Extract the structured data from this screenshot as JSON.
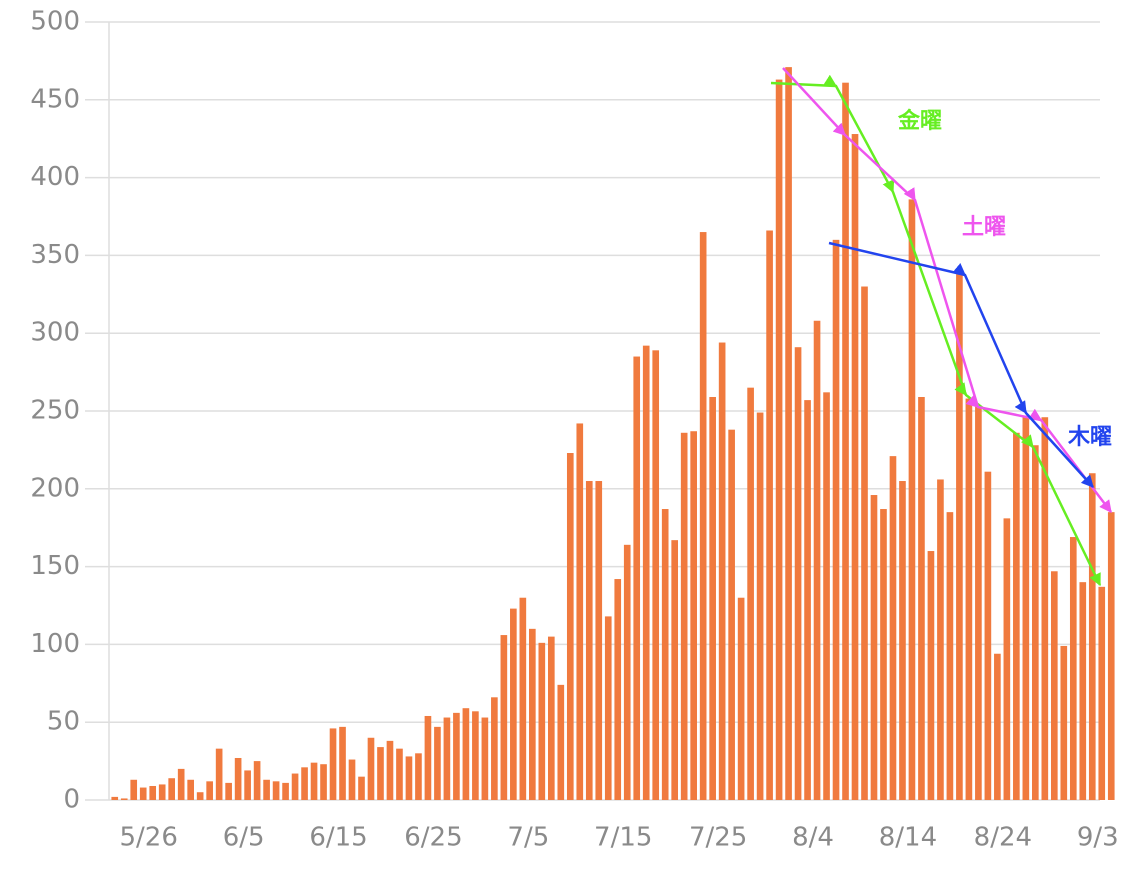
{
  "chart_data": {
    "type": "bar",
    "categories": [
      null,
      null,
      null,
      null,
      "5/26",
      null,
      null,
      null,
      null,
      null,
      null,
      null,
      null,
      null,
      "6/5",
      null,
      null,
      null,
      null,
      null,
      null,
      null,
      null,
      null,
      "6/15",
      null,
      null,
      null,
      null,
      null,
      null,
      null,
      null,
      null,
      "6/25",
      null,
      null,
      null,
      null,
      null,
      null,
      null,
      null,
      null,
      "7/5",
      null,
      null,
      null,
      null,
      null,
      null,
      null,
      null,
      null,
      "7/15",
      null,
      null,
      null,
      null,
      null,
      null,
      null,
      null,
      null,
      "7/25",
      null,
      null,
      null,
      null,
      null,
      null,
      null,
      null,
      null,
      "8/4",
      null,
      null,
      null,
      null,
      null,
      null,
      null,
      null,
      null,
      "8/14",
      null,
      null,
      null,
      null,
      null,
      null,
      null,
      null,
      null,
      "8/24",
      null,
      null,
      null,
      null,
      null,
      null,
      null,
      null,
      null,
      "9/3",
      null
    ],
    "values": [
      2,
      1,
      13,
      8,
      9,
      10,
      14,
      20,
      13,
      5,
      12,
      33,
      11,
      27,
      19,
      25,
      13,
      12,
      11,
      17,
      21,
      24,
      23,
      46,
      47,
      26,
      15,
      40,
      34,
      38,
      33,
      28,
      30,
      54,
      47,
      53,
      56,
      59,
      57,
      53,
      66,
      106,
      123,
      130,
      110,
      101,
      105,
      74,
      223,
      242,
      205,
      205,
      118,
      142,
      164,
      285,
      292,
      289,
      187,
      167,
      236,
      237,
      365,
      259,
      294,
      238,
      130,
      265,
      249,
      366,
      463,
      471,
      291,
      257,
      308,
      262,
      360,
      461,
      428,
      330,
      196,
      187,
      221,
      205,
      386,
      259,
      160,
      206,
      185,
      338,
      258,
      253,
      211,
      94,
      181,
      236,
      247,
      228,
      246,
      147,
      99,
      169,
      140,
      210,
      137,
      185
    ],
    "color": "#f07a3e",
    "ylim": [
      0,
      500
    ],
    "yticks": [
      0,
      50,
      100,
      150,
      200,
      250,
      300,
      350,
      400,
      450,
      500
    ],
    "grid": true,
    "annotations": [
      {
        "label": "金曜",
        "color": "#66ee22"
      },
      {
        "label": "土曜",
        "color": "#ee55ee"
      },
      {
        "label": "木曜",
        "color": "#2244ee"
      }
    ]
  }
}
